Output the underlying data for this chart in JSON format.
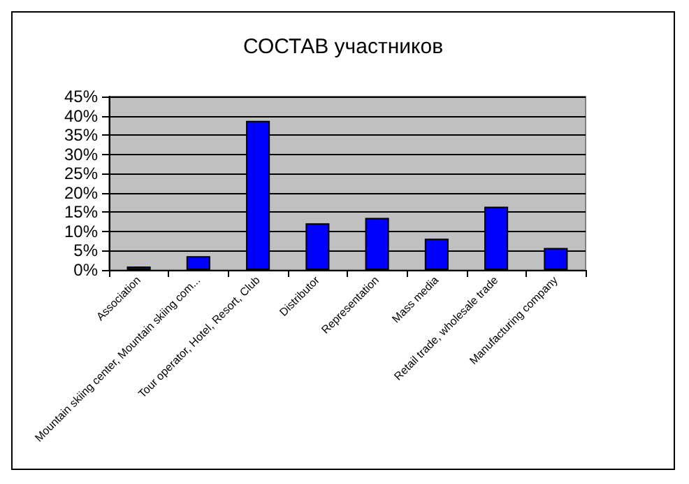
{
  "chart_data": {
    "type": "bar",
    "title": "СОСТАВ участников",
    "categories": [
      "Association",
      "Mountain skiing center, Mountain skiing com...",
      "Tour operator, Hotel, Resort, Club",
      "Distributor",
      "Representation",
      "Mass media",
      "Retail trade, wholesale trade",
      "Manufacturing company"
    ],
    "values": [
      0.9,
      3.6,
      38.7,
      12.1,
      13.5,
      8.1,
      16.4,
      5.7
    ],
    "color": "#0000ff",
    "ylim": [
      0,
      45
    ],
    "yticks": [
      {
        "value": 0,
        "label": "0%"
      },
      {
        "value": 5,
        "label": "5%"
      },
      {
        "value": 10,
        "label": "10%"
      },
      {
        "value": 15,
        "label": "15%"
      },
      {
        "value": 20,
        "label": "20%"
      },
      {
        "value": 25,
        "label": "25%"
      },
      {
        "value": 30,
        "label": "30%"
      },
      {
        "value": 35,
        "label": "35%"
      },
      {
        "value": 40,
        "label": "40%"
      },
      {
        "value": 45,
        "label": "45%"
      }
    ],
    "grid": "y"
  }
}
